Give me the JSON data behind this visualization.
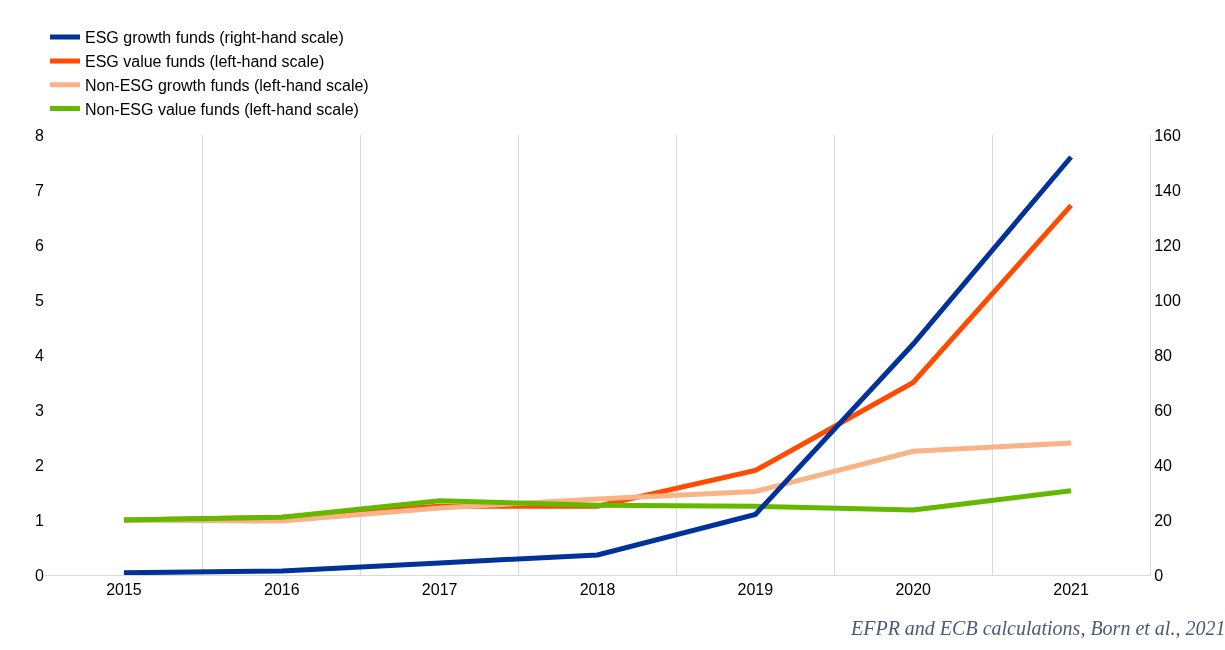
{
  "chart_data": {
    "type": "line",
    "categories": [
      "2015",
      "2016",
      "2017",
      "2018",
      "2019",
      "2020",
      "2021"
    ],
    "series": [
      {
        "name": "ESG growth funds (right-hand scale)",
        "color": "#003299",
        "axis": "y2",
        "values": [
          0.8,
          1.5,
          4.4,
          7.3,
          22,
          84,
          152
        ]
      },
      {
        "name": "ESG value funds (left-hand scale)",
        "color": "#ff4b00",
        "values": [
          1.0,
          1.05,
          1.25,
          1.25,
          1.9,
          3.5,
          6.72
        ]
      },
      {
        "name": "Non-ESG growth funds (left-hand scale)",
        "color": "#f9b384",
        "values": [
          1.0,
          0.98,
          1.22,
          1.38,
          1.52,
          2.25,
          2.4
        ]
      },
      {
        "name": "Non-ESG value funds (left-hand scale)",
        "color": "#65b800",
        "values": [
          1.0,
          1.05,
          1.35,
          1.27,
          1.25,
          1.18,
          1.53
        ]
      }
    ],
    "ylim": [
      0,
      8
    ],
    "yticks": [
      0,
      1,
      2,
      3,
      4,
      5,
      6,
      7,
      8
    ],
    "y2lim": [
      0,
      160
    ],
    "y2ticks": [
      0,
      20,
      40,
      60,
      80,
      100,
      120,
      140,
      160
    ],
    "grid": "x",
    "legend": "top left",
    "marker": "none",
    "line_style": "solid",
    "annotations": [
      "EFPR and ECB calculations, Born et al., 2021"
    ]
  }
}
